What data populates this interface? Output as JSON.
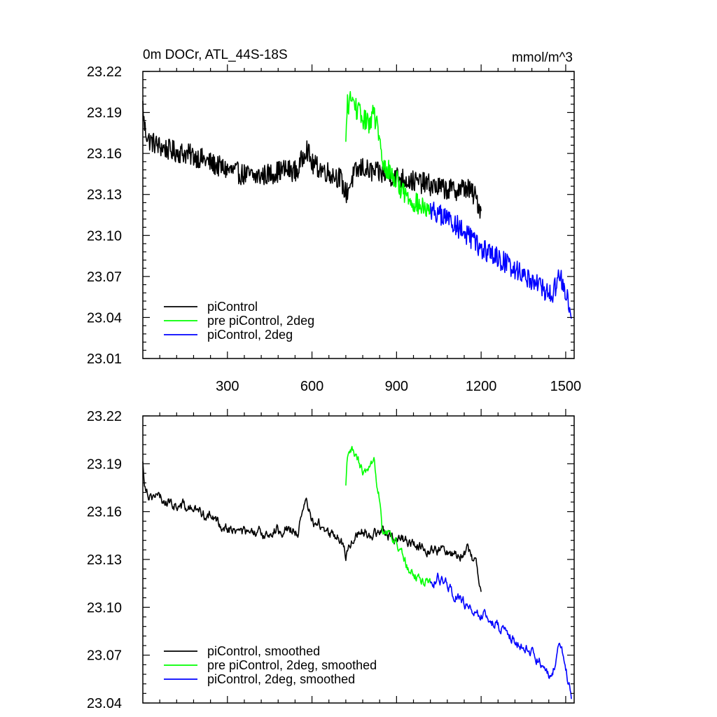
{
  "chart_data": [
    {
      "type": "line",
      "title": "0m DOCr, ATL_44S-18S",
      "units": "mmol/m^3",
      "xlim": [
        0,
        1530
      ],
      "ylim": [
        23.01,
        23.22
      ],
      "xticks": [
        300,
        600,
        900,
        1200,
        1500
      ],
      "xtick_labels": [
        "300",
        "600",
        "900",
        "1200",
        "1500"
      ],
      "yticks": [
        23.01,
        23.04,
        23.07,
        23.1,
        23.13,
        23.16,
        23.19,
        23.22
      ],
      "ytick_labels": [
        "23.01",
        "23.04",
        "23.07",
        "23.10",
        "23.13",
        "23.16",
        "23.19",
        "23.22"
      ],
      "legend_position": "bottom-left",
      "series": [
        {
          "name": "piControl",
          "color": "#000000",
          "noise": 0.008,
          "x": [
            0,
            5,
            20,
            60,
            100,
            150,
            200,
            250,
            300,
            350,
            400,
            450,
            500,
            550,
            580,
            600,
            650,
            700,
            720,
            750,
            780,
            800,
            850,
            900,
            950,
            1000,
            1050,
            1100,
            1150,
            1180,
            1200
          ],
          "y": [
            23.195,
            23.18,
            23.17,
            23.165,
            23.162,
            23.16,
            23.157,
            23.152,
            23.148,
            23.145,
            23.143,
            23.145,
            23.148,
            23.147,
            23.165,
            23.152,
            23.147,
            23.142,
            23.13,
            23.145,
            23.15,
            23.147,
            23.145,
            23.143,
            23.14,
            23.138,
            23.135,
            23.133,
            23.135,
            23.128,
            23.118
          ]
        },
        {
          "name": "pre piControl, 2deg",
          "color": "#00ff00",
          "noise": 0.008,
          "x": [
            720,
            725,
            740,
            760,
            780,
            800,
            820,
            840,
            850,
            870,
            900,
            930,
            960,
            990,
            1010,
            1020
          ],
          "y": [
            23.165,
            23.195,
            23.2,
            23.192,
            23.185,
            23.182,
            23.19,
            23.17,
            23.15,
            23.148,
            23.14,
            23.13,
            23.125,
            23.12,
            23.118,
            23.115
          ]
        },
        {
          "name": "piControl, 2deg",
          "color": "#0000ff",
          "noise": 0.008,
          "x": [
            1020,
            1050,
            1100,
            1150,
            1200,
            1250,
            1300,
            1350,
            1400,
            1450,
            1480,
            1500,
            1520
          ],
          "y": [
            23.12,
            23.115,
            23.11,
            23.1,
            23.09,
            23.085,
            23.078,
            23.072,
            23.065,
            23.055,
            23.07,
            23.06,
            23.035
          ]
        }
      ]
    },
    {
      "type": "line",
      "title": "",
      "units": "",
      "xlim": [
        0,
        1530
      ],
      "ylim": [
        23.04,
        23.22
      ],
      "xticks": [
        300,
        600,
        900,
        1200,
        1500
      ],
      "xtick_labels": [],
      "yticks": [
        23.04,
        23.07,
        23.1,
        23.13,
        23.16,
        23.19,
        23.22
      ],
      "ytick_labels": [
        "23.04",
        "23.07",
        "23.10",
        "23.13",
        "23.16",
        "23.19",
        "23.22"
      ],
      "legend_position": "bottom-left",
      "series": [
        {
          "name": "piControl, smoothed",
          "color": "#000000",
          "noise": 0.004,
          "x": [
            0,
            5,
            20,
            60,
            100,
            150,
            200,
            250,
            300,
            350,
            400,
            450,
            500,
            550,
            580,
            600,
            650,
            700,
            720,
            750,
            780,
            800,
            850,
            900,
            950,
            1000,
            1050,
            1100,
            1150,
            1180,
            1200
          ],
          "y": [
            23.19,
            23.18,
            23.172,
            23.168,
            23.165,
            23.163,
            23.16,
            23.155,
            23.15,
            23.147,
            23.145,
            23.147,
            23.15,
            23.148,
            23.165,
            23.155,
            23.148,
            23.143,
            23.133,
            23.145,
            23.148,
            23.147,
            23.146,
            23.144,
            23.14,
            23.138,
            23.136,
            23.134,
            23.135,
            23.128,
            23.115
          ]
        },
        {
          "name": "pre piControl, 2deg, smoothed",
          "color": "#00ff00",
          "noise": 0.004,
          "x": [
            720,
            725,
            740,
            760,
            780,
            800,
            820,
            840,
            850,
            870,
            900,
            930,
            960,
            990,
            1010,
            1020
          ],
          "y": [
            23.175,
            23.19,
            23.198,
            23.192,
            23.185,
            23.183,
            23.188,
            23.17,
            23.15,
            23.148,
            23.14,
            23.128,
            23.12,
            23.117,
            23.118,
            23.115
          ]
        },
        {
          "name": "piControl, 2deg, smoothed",
          "color": "#0000ff",
          "noise": 0.004,
          "x": [
            1020,
            1050,
            1100,
            1150,
            1200,
            1250,
            1300,
            1350,
            1400,
            1450,
            1480,
            1500,
            1520
          ],
          "y": [
            23.115,
            23.118,
            23.11,
            23.1,
            23.095,
            23.09,
            23.082,
            23.075,
            23.068,
            23.055,
            23.078,
            23.062,
            23.045
          ]
        }
      ]
    }
  ]
}
